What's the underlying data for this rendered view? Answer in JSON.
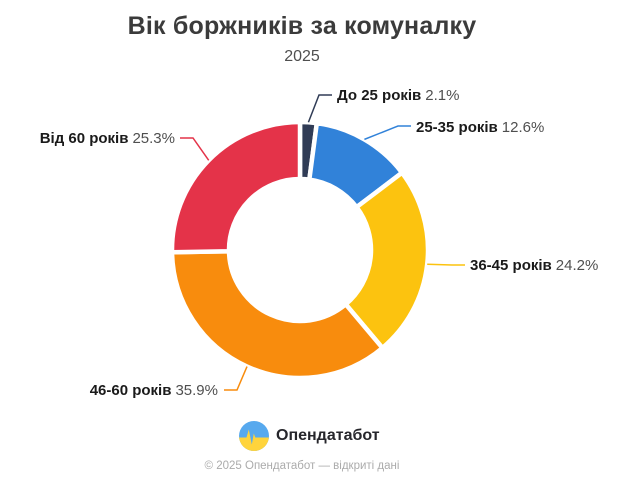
{
  "title": "Вік боржників за комуналку",
  "subtitle": "2025",
  "chart_data": {
    "type": "pie",
    "donut": true,
    "unit": "%",
    "start_angle_deg": 0,
    "direction": "clockwise",
    "legend_position": "none",
    "segments": [
      {
        "label": "До 25 років",
        "value": 2.1,
        "display": "2.1%",
        "color": "#303c56"
      },
      {
        "label": "25-35 років",
        "value": 12.6,
        "display": "12.6%",
        "color": "#3182d9"
      },
      {
        "label": "36-45 років",
        "value": 24.2,
        "display": "24.2%",
        "color": "#fcc30f"
      },
      {
        "label": "46-60 років",
        "value": 35.9,
        "display": "35.9%",
        "color": "#f88c0d"
      },
      {
        "label": "Від 60 років",
        "value": 25.3,
        "display": "25.3%",
        "color": "#e43349"
      }
    ]
  },
  "logo": {
    "text": "Опендатабот",
    "icon": "opendatabot-flag-pulse-icon",
    "icon_colors": {
      "blue": "#57a9ee",
      "yellow": "#ffd43c"
    }
  },
  "footer": "© 2025 Опендатабот — відкриті дані"
}
